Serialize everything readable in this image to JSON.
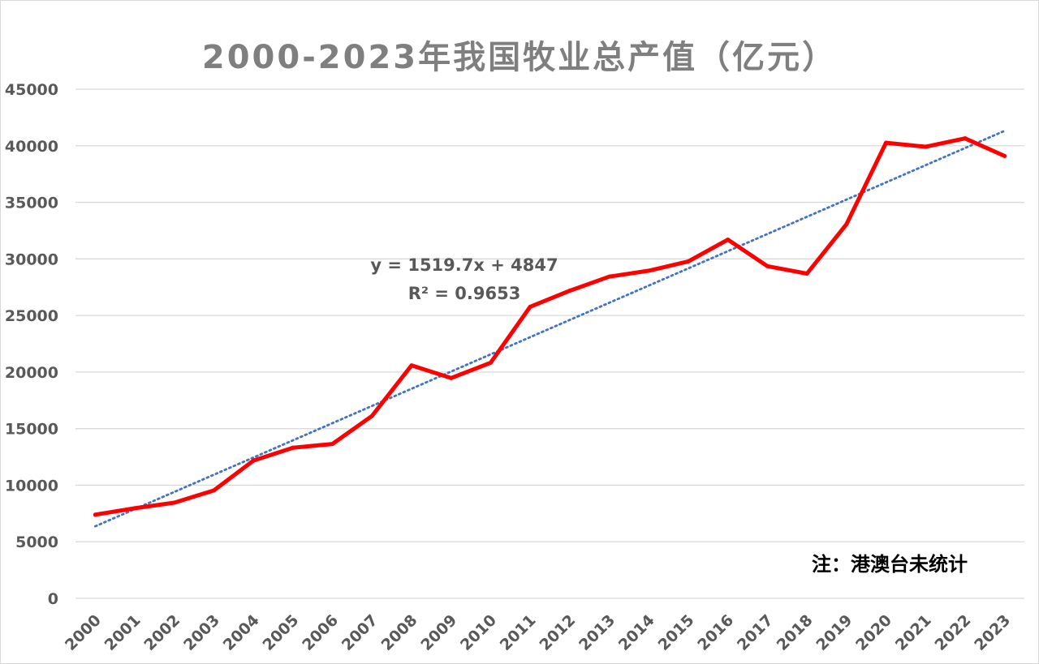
{
  "chart_data": {
    "type": "line",
    "title": "2000-2023年我国牧业总产值（亿元）",
    "categories": [
      "2000",
      "2001",
      "2002",
      "2003",
      "2004",
      "2005",
      "2006",
      "2007",
      "2008",
      "2009",
      "2010",
      "2011",
      "2012",
      "2013",
      "2014",
      "2015",
      "2016",
      "2017",
      "2018",
      "2019",
      "2020",
      "2021",
      "2022",
      "2023"
    ],
    "series": [
      {
        "values": [
          7393,
          7963,
          8455,
          9539,
          12174,
          13311,
          13641,
          16125,
          20584,
          19468,
          20826,
          25771,
          27189,
          28435,
          28956,
          29780,
          31703,
          29361,
          28697,
          33064,
          40267,
          39911,
          40653,
          39094
        ],
        "color": "#ff0000"
      }
    ],
    "trendline": {
      "type": "linear",
      "slope": 1519.7,
      "intercept": 4847,
      "equation": "y = 1519.7x + 4847",
      "r_squared": "R² = 0.9653",
      "color": "#4472c4"
    },
    "yticks": [
      "0",
      "5000",
      "10000",
      "15000",
      "20000",
      "25000",
      "30000",
      "35000",
      "40000",
      "45000"
    ],
    "ylim": [
      0,
      45000
    ],
    "grid": true,
    "legend": "none",
    "note": "注：港澳台未统计"
  }
}
